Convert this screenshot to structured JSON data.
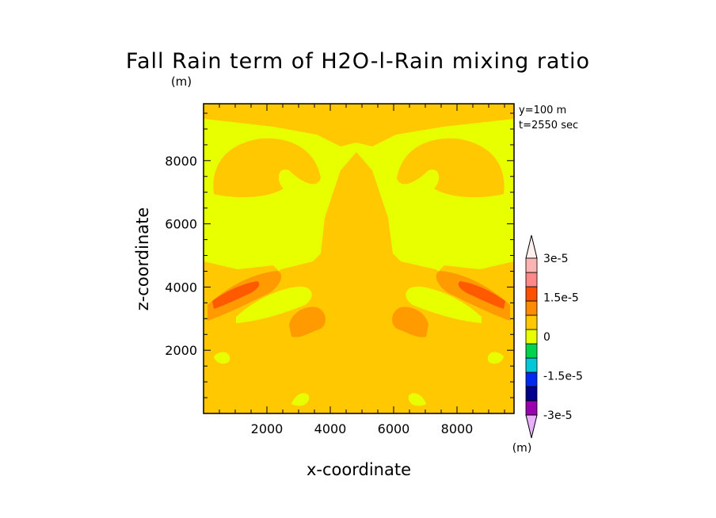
{
  "chart_data": {
    "type": "heatmap",
    "title": "Fall Rain term of H2O-l-Rain mixing ratio",
    "title_unit": "(m)",
    "xlabel": "x-coordinate",
    "ylabel": "z-coordinate",
    "annotation_lines": [
      "y=100 m",
      "t=2550 sec"
    ],
    "xlim": [
      0,
      9800
    ],
    "ylim": [
      0,
      9800
    ],
    "xticks": [
      {
        "value": 2000,
        "label": "2000"
      },
      {
        "value": 4000,
        "label": "4000"
      },
      {
        "value": 6000,
        "label": "6000"
      },
      {
        "value": 8000,
        "label": "8000"
      }
    ],
    "yticks": [
      {
        "value": 2000,
        "label": "2000"
      },
      {
        "value": 4000,
        "label": "4000"
      },
      {
        "value": 6000,
        "label": "6000"
      },
      {
        "value": 8000,
        "label": "8000"
      }
    ],
    "colorbar": {
      "unit_label": "(m)",
      "colors": [
        "#e8b0ff",
        "#9900b0",
        "#00008c",
        "#0028f0",
        "#00c8d8",
        "#00d44c",
        "#e8ff00",
        "#ffc800",
        "#ff8c00",
        "#ff5000",
        "#ff8888",
        "#ffb4b4",
        "#fff0f0"
      ],
      "labels": [
        {
          "value": 3e-05,
          "label": "3e-5"
        },
        {
          "value": 1.5e-05,
          "label": "1.5e-5"
        },
        {
          "value": 0,
          "label": "0"
        },
        {
          "value": -1.5e-05,
          "label": "-1.5e-5"
        },
        {
          "value": -3e-05,
          "label": "-3e-5"
        }
      ]
    },
    "colors": {
      "background_level": "#e8ff00",
      "level_1": "#ffc800",
      "level_2": "#ff9a00",
      "level_3": "#ff5a00"
    }
  }
}
